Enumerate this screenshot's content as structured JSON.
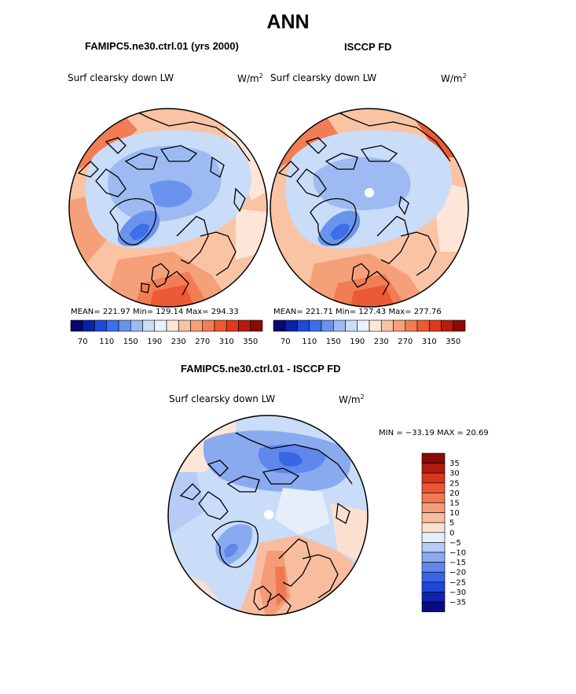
{
  "title": "ANN",
  "colors": {
    "palette": [
      "#08086e",
      "#0b22a8",
      "#1f49d8",
      "#3d6fe8",
      "#6a93ee",
      "#9dbbf2",
      "#c9dcf8",
      "#eaf1fb",
      "#fde6d8",
      "#f9c3a4",
      "#f6a07a",
      "#f27d55",
      "#ec5a33",
      "#e0391c",
      "#b41c10",
      "#8a0a06"
    ],
    "diff_palette": [
      "#0a0a80",
      "#0d24b0",
      "#1f46d8",
      "#3a66e6",
      "#5f87ec",
      "#8aaaf0",
      "#b6ccf6",
      "#e6eefb",
      "#fbe0d1",
      "#f8bd9e",
      "#f49b77",
      "#f07953",
      "#ea5532",
      "#d9361b",
      "#b01b0f",
      "#8a0a06"
    ]
  },
  "panels": [
    {
      "id": "model",
      "title": "FAMIPC5.ne30.ctrl.01 (yrs 2000)",
      "variable": "Surf clearsky down LW",
      "units_base": "W/m",
      "units_exp": "2",
      "stats": "MEAN= 221.97  Min= 129.14  Max= 294.33"
    },
    {
      "id": "obs",
      "title": "ISCCP FD",
      "variable": "Surf clearsky down LW",
      "units_base": "W/m",
      "units_exp": "2",
      "stats": "MEAN= 221.71  Min= 127.43  Max= 277.76"
    }
  ],
  "colorbar_labels": [
    "70",
    "110",
    "150",
    "190",
    "230",
    "270",
    "310",
    "350"
  ],
  "diff": {
    "title": "FAMIPC5.ne30.ctrl.01 - ISCCP FD",
    "variable": "Surf clearsky down LW",
    "units_base": "W/m",
    "units_exp": "2",
    "stats": "MIN = −33.19 MAX =   20.69",
    "colorbar_labels": [
      "35",
      "30",
      "25",
      "20",
      "15",
      "10",
      "5",
      "0",
      "−5",
      "−10",
      "−15",
      "−20",
      "−25",
      "−30",
      "−35"
    ]
  }
}
